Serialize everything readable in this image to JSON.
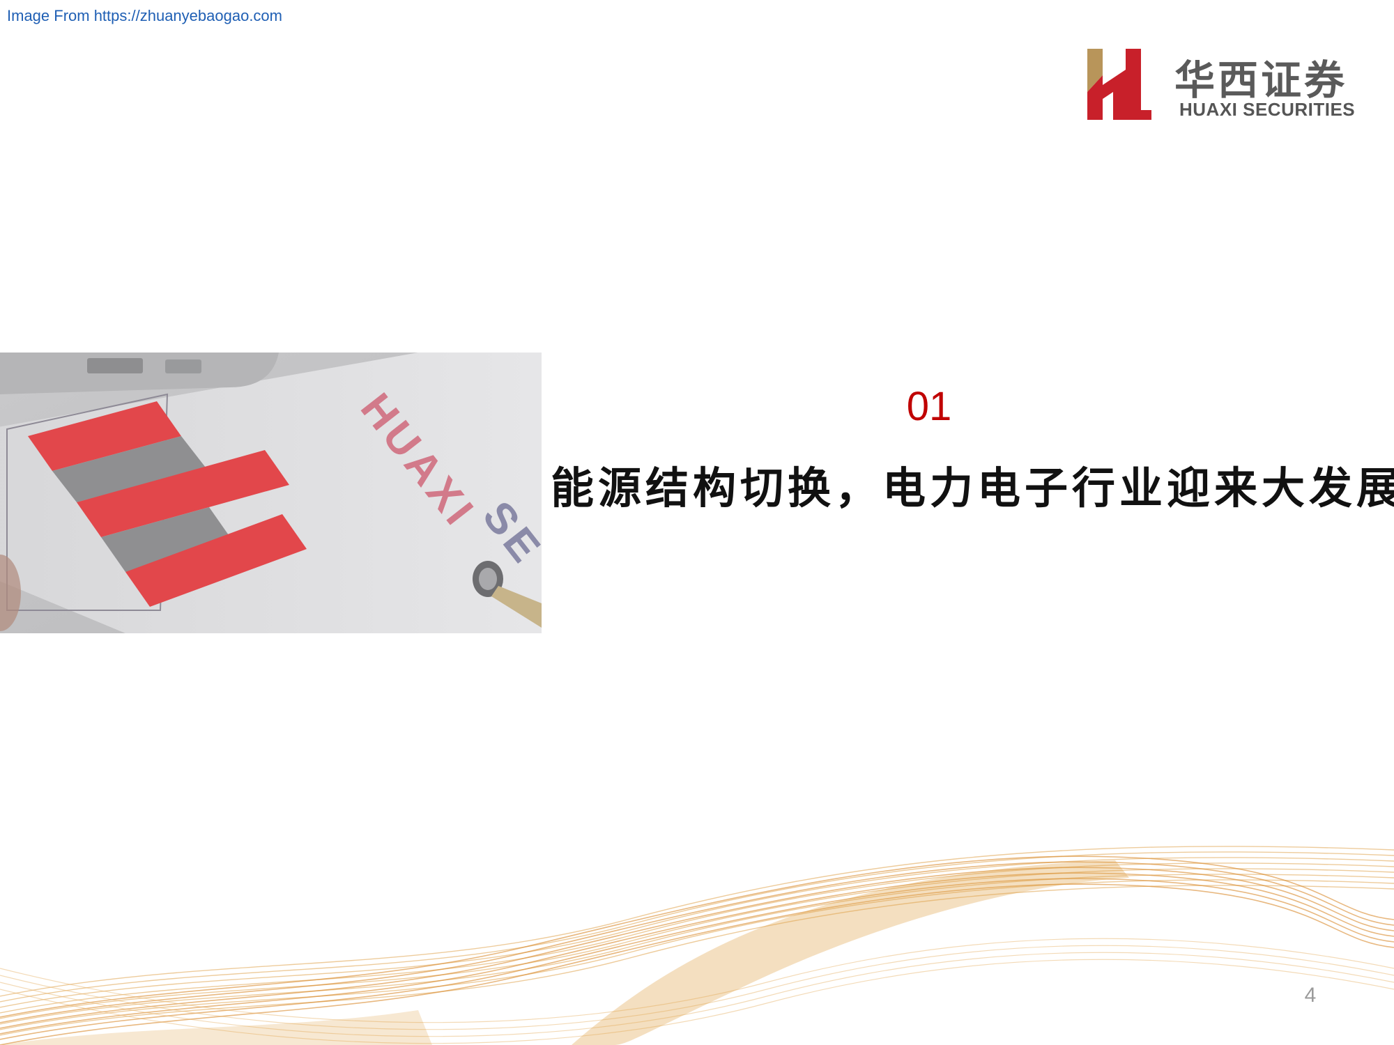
{
  "header": {
    "source_text": "Image From https://zhuanyebaogao.com"
  },
  "logo": {
    "cn_text": "华西证券",
    "en_text": "HUAXI SECURITIES",
    "colors": {
      "red": "#c8202a",
      "gold": "#b8955a",
      "gray": "#5a5a5a"
    }
  },
  "section": {
    "number": "01",
    "title": "能源结构切换，电力电子行业迎来大发展"
  },
  "footer": {
    "page_number": "4"
  },
  "colors": {
    "accent_red": "#c00000",
    "wave_orange": "#e0a24a"
  }
}
